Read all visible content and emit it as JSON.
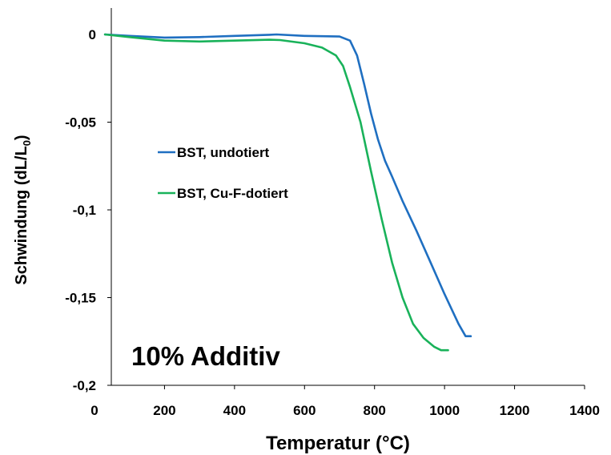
{
  "chart_data": {
    "type": "line",
    "title": "",
    "xlabel": "Temperatur (°C)",
    "ylabel_main": "Schwindung (dL/L",
    "ylabel_sub": "0",
    "ylabel_close": ")",
    "xlim": [
      0,
      1400
    ],
    "ylim": [
      -0.2,
      0
    ],
    "x_ticks": [
      0,
      200,
      400,
      600,
      800,
      1000,
      1200,
      1400
    ],
    "x_tick_labels": [
      "0",
      "200",
      "400",
      "600",
      "800",
      "1000",
      "1200",
      "1400"
    ],
    "y_ticks": [
      0,
      -0.05,
      -0.1,
      -0.15,
      -0.2
    ],
    "y_tick_labels": [
      "0",
      "-0,05",
      "-0,1",
      "-0,15",
      "-0,2"
    ],
    "grid": false,
    "legend_position": "center-left",
    "annotation": "10% Additiv",
    "series": [
      {
        "name": "BST, undotiert",
        "color": "#1f6fc1",
        "x": [
          30,
          100,
          200,
          300,
          400,
          500,
          520,
          600,
          700,
          730,
          750,
          770,
          790,
          810,
          830,
          850,
          880,
          920,
          960,
          1000,
          1040,
          1060,
          1075
        ],
        "y": [
          0,
          -0.0008,
          -0.0018,
          -0.0015,
          -0.0008,
          -0.0002,
          0.0,
          -0.0008,
          -0.0012,
          -0.0035,
          -0.012,
          -0.028,
          -0.045,
          -0.06,
          -0.072,
          -0.081,
          -0.095,
          -0.112,
          -0.13,
          -0.148,
          -0.165,
          -0.172,
          -0.172
        ]
      },
      {
        "name": "BST, Cu-F-dotiert",
        "color": "#19b25a",
        "x": [
          30,
          100,
          200,
          300,
          400,
          500,
          530,
          600,
          650,
          690,
          710,
          730,
          760,
          790,
          820,
          850,
          880,
          910,
          940,
          970,
          990,
          1010
        ],
        "y": [
          0,
          -0.0015,
          -0.0035,
          -0.004,
          -0.0035,
          -0.003,
          -0.0032,
          -0.005,
          -0.0075,
          -0.012,
          -0.018,
          -0.03,
          -0.05,
          -0.078,
          -0.105,
          -0.13,
          -0.15,
          -0.165,
          -0.173,
          -0.178,
          -0.18,
          -0.18
        ]
      }
    ]
  }
}
